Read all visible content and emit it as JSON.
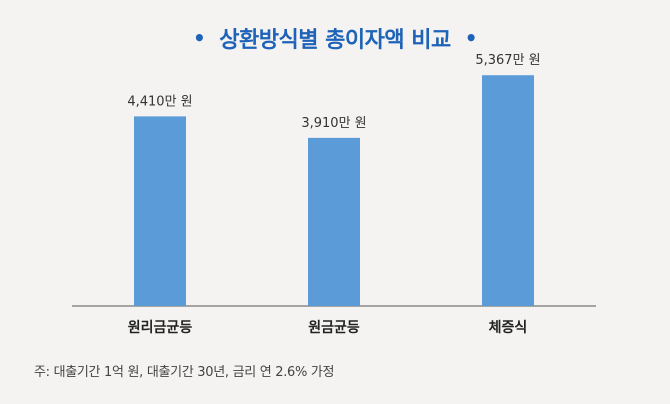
{
  "chart_data": {
    "type": "bar",
    "title": "상환방식별 총이자액 비교",
    "categories": [
      "원리금균등",
      "원금균등",
      "체증식"
    ],
    "values": [
      4410,
      3910,
      5367
    ],
    "value_labels": [
      "4,410만 원",
      "3,910만 원",
      "5,367만 원"
    ],
    "unit": "만 원",
    "ylim": [
      0,
      6000
    ],
    "grid": false,
    "legend": "none"
  },
  "decor": {
    "title_bullet": "•"
  },
  "note": "주: 대출기간 1억 원, 대출기간 30년, 금리 연 2.6% 가정",
  "colors": {
    "bar": "#5b9bd8",
    "title": "#1f63b8",
    "axis": "#555555",
    "background": "#f4f3f1"
  }
}
